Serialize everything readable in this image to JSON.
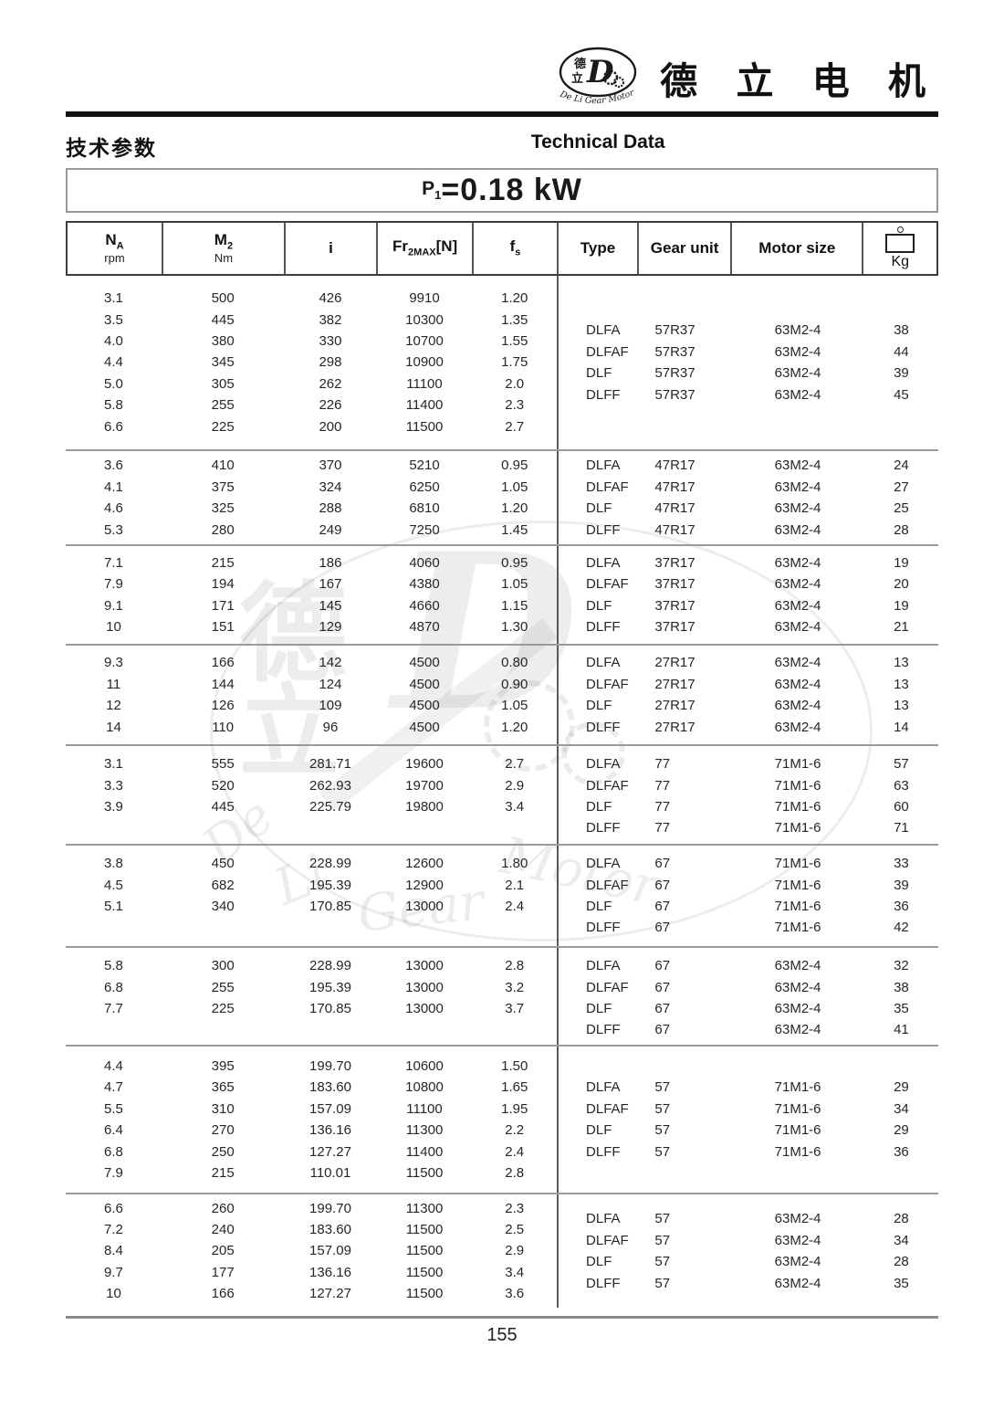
{
  "logo": {
    "emblem_cn_top": "德",
    "emblem_cn_bottom": "立",
    "emblem_letter": "D",
    "emblem_arc_text": "De Li Gear Motor",
    "brand_cn": "德 立 电 机"
  },
  "header": {
    "title_cn": "技术参数",
    "title_en": "Technical Data",
    "power_prefix": "P",
    "power_sub": "1",
    "power_value": "=0.18 kW"
  },
  "table": {
    "columns": [
      {
        "label": "N",
        "sub": "A",
        "unit": "rpm"
      },
      {
        "label": "M",
        "sub": "2",
        "unit": "Nm"
      },
      {
        "label": "i"
      },
      {
        "label": "Fr",
        "sub": "2MAX",
        "suffix": "[N]"
      },
      {
        "label": "f",
        "sub": "s"
      },
      {
        "label": "Type"
      },
      {
        "label": "Gear unit"
      },
      {
        "label": "Motor size"
      },
      {
        "label": "Kg",
        "icon": "weight-icon"
      }
    ],
    "groups": [
      {
        "rows": [
          [
            "3.1",
            "500",
            "426",
            "9910",
            "1.20"
          ],
          [
            "3.5",
            "445",
            "382",
            "10300",
            "1.35"
          ],
          [
            "4.0",
            "380",
            "330",
            "10700",
            "1.55"
          ],
          [
            "4.4",
            "345",
            "298",
            "10900",
            "1.75"
          ],
          [
            "5.0",
            "305",
            "262",
            "11100",
            "2.0"
          ],
          [
            "5.8",
            "255",
            "226",
            "11400",
            "2.3"
          ],
          [
            "6.6",
            "225",
            "200",
            "11500",
            "2.7"
          ]
        ],
        "types": [
          [
            "DLFA",
            "57R37",
            "63M2-4",
            "38"
          ],
          [
            "DLFAF",
            "57R37",
            "63M2-4",
            "44"
          ],
          [
            "DLF",
            "57R37",
            "63M2-4",
            "39"
          ],
          [
            "DLFF",
            "57R37",
            "63M2-4",
            "45"
          ]
        ]
      },
      {
        "rows": [
          [
            "3.6",
            "410",
            "370",
            "5210",
            "0.95"
          ],
          [
            "4.1",
            "375",
            "324",
            "6250",
            "1.05"
          ],
          [
            "4.6",
            "325",
            "288",
            "6810",
            "1.20"
          ],
          [
            "5.3",
            "280",
            "249",
            "7250",
            "1.45"
          ]
        ],
        "types": [
          [
            "DLFA",
            "47R17",
            "63M2-4",
            "24"
          ],
          [
            "DLFAF",
            "47R17",
            "63M2-4",
            "27"
          ],
          [
            "DLF",
            "47R17",
            "63M2-4",
            "25"
          ],
          [
            "DLFF",
            "47R17",
            "63M2-4",
            "28"
          ]
        ]
      },
      {
        "rows": [
          [
            "7.1",
            "215",
            "186",
            "4060",
            "0.95"
          ],
          [
            "7.9",
            "194",
            "167",
            "4380",
            "1.05"
          ],
          [
            "9.1",
            "171",
            "145",
            "4660",
            "1.15"
          ],
          [
            "10",
            "151",
            "129",
            "4870",
            "1.30"
          ]
        ],
        "types": [
          [
            "DLFA",
            "37R17",
            "63M2-4",
            "19"
          ],
          [
            "DLFAF",
            "37R17",
            "63M2-4",
            "20"
          ],
          [
            "DLF",
            "37R17",
            "63M2-4",
            "19"
          ],
          [
            "DLFF",
            "37R17",
            "63M2-4",
            "21"
          ]
        ]
      },
      {
        "rows": [
          [
            "9.3",
            "166",
            "142",
            "4500",
            "0.80"
          ],
          [
            "11",
            "144",
            "124",
            "4500",
            "0.90"
          ],
          [
            "12",
            "126",
            "109",
            "4500",
            "1.05"
          ],
          [
            "14",
            "110",
            "96",
            "4500",
            "1.20"
          ]
        ],
        "types": [
          [
            "DLFA",
            "27R17",
            "63M2-4",
            "13"
          ],
          [
            "DLFAF",
            "27R17",
            "63M2-4",
            "13"
          ],
          [
            "DLF",
            "27R17",
            "63M2-4",
            "13"
          ],
          [
            "DLFF",
            "27R17",
            "63M2-4",
            "14"
          ]
        ]
      },
      {
        "rows": [
          [
            "3.1",
            "555",
            "281.71",
            "19600",
            "2.7"
          ],
          [
            "3.3",
            "520",
            "262.93",
            "19700",
            "2.9"
          ],
          [
            "3.9",
            "445",
            "225.79",
            "19800",
            "3.4"
          ]
        ],
        "types": [
          [
            "DLFA",
            "77",
            "71M1-6",
            "57"
          ],
          [
            "DLFAF",
            "77",
            "71M1-6",
            "63"
          ],
          [
            "DLF",
            "77",
            "71M1-6",
            "60"
          ],
          [
            "DLFF",
            "77",
            "71M1-6",
            "71"
          ]
        ]
      },
      {
        "rows": [
          [
            "3.8",
            "450",
            "228.99",
            "12600",
            "1.80"
          ],
          [
            "4.5",
            "682",
            "195.39",
            "12900",
            "2.1"
          ],
          [
            "5.1",
            "340",
            "170.85",
            "13000",
            "2.4"
          ]
        ],
        "types": [
          [
            "DLFA",
            "67",
            "71M1-6",
            "33"
          ],
          [
            "DLFAF",
            "67",
            "71M1-6",
            "39"
          ],
          [
            "DLF",
            "67",
            "71M1-6",
            "36"
          ],
          [
            "DLFF",
            "67",
            "71M1-6",
            "42"
          ]
        ]
      },
      {
        "rows": [
          [
            "5.8",
            "300",
            "228.99",
            "13000",
            "2.8"
          ],
          [
            "6.8",
            "255",
            "195.39",
            "13000",
            "3.2"
          ],
          [
            "7.7",
            "225",
            "170.85",
            "13000",
            "3.7"
          ]
        ],
        "types": [
          [
            "DLFA",
            "67",
            "63M2-4",
            "32"
          ],
          [
            "DLFAF",
            "67",
            "63M2-4",
            "38"
          ],
          [
            "DLF",
            "67",
            "63M2-4",
            "35"
          ],
          [
            "DLFF",
            "67",
            "63M2-4",
            "41"
          ]
        ]
      },
      {
        "rows": [
          [
            "4.4",
            "395",
            "199.70",
            "10600",
            "1.50"
          ],
          [
            "4.7",
            "365",
            "183.60",
            "10800",
            "1.65"
          ],
          [
            "5.5",
            "310",
            "157.09",
            "11100",
            "1.95"
          ],
          [
            "6.4",
            "270",
            "136.16",
            "11300",
            "2.2"
          ],
          [
            "6.8",
            "250",
            "127.27",
            "11400",
            "2.4"
          ],
          [
            "7.9",
            "215",
            "110.01",
            "11500",
            "2.8"
          ]
        ],
        "types": [
          [
            "DLFA",
            "57",
            "71M1-6",
            "29"
          ],
          [
            "DLFAF",
            "57",
            "71M1-6",
            "34"
          ],
          [
            "DLF",
            "57",
            "71M1-6",
            "29"
          ],
          [
            "DLFF",
            "57",
            "71M1-6",
            "36"
          ]
        ]
      },
      {
        "rows": [
          [
            "6.6",
            "260",
            "199.70",
            "11300",
            "2.3"
          ],
          [
            "7.2",
            "240",
            "183.60",
            "11500",
            "2.5"
          ],
          [
            "8.4",
            "205",
            "157.09",
            "11500",
            "2.9"
          ],
          [
            "9.7",
            "177",
            "136.16",
            "11500",
            "3.4"
          ],
          [
            "10",
            "166",
            "127.27",
            "11500",
            "3.6"
          ]
        ],
        "types": [
          [
            "DLFA",
            "57",
            "63M2-4",
            "28"
          ],
          [
            "DLFAF",
            "57",
            "63M2-4",
            "34"
          ],
          [
            "DLF",
            "57",
            "63M2-4",
            "28"
          ],
          [
            "DLFF",
            "57",
            "63M2-4",
            "35"
          ]
        ]
      }
    ]
  },
  "footer": {
    "page_number": "155"
  },
  "watermark": {
    "char_top": "德",
    "char_bottom": "立",
    "letter": "D",
    "words": [
      "De",
      "Li",
      "Gear",
      "Motor"
    ]
  },
  "colors": {
    "rule_dark": "#141414",
    "rule_gray": "#8a8a8a",
    "text": "#262626"
  }
}
